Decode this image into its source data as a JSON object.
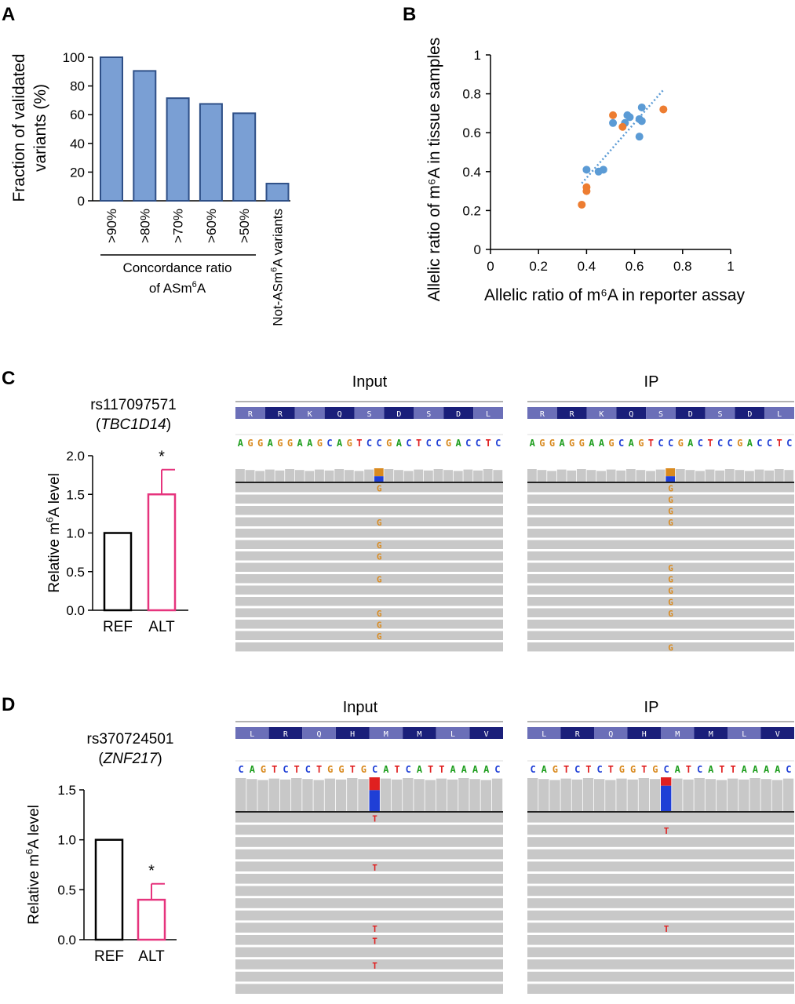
{
  "colors": {
    "barA": "#7a9fd4",
    "barA_edge": "#2e4f87",
    "blue_pt": "#5b9bd5",
    "orange_pt": "#ed7d31",
    "trend": "#5b9bd5",
    "alt": "#e6347d",
    "track_grey": "#c8c8c8",
    "aa_dark": "#1a1f7a",
    "aa_light": "#6b6fb8",
    "nuc_A": "#1f9e1f",
    "nuc_C": "#1f3fd6",
    "nuc_G": "#d98a1f",
    "nuc_T": "#e02020",
    "ref_allele": "#1f3fd6"
  },
  "panels": {
    "A": {
      "letter": "A"
    },
    "B": {
      "letter": "B"
    },
    "C": {
      "letter": "C",
      "snp": "rs117097571",
      "gene": "TBC1D14",
      "input_title": "Input",
      "ip_title": "IP",
      "aa": [
        "R",
        "R",
        "K",
        "Q",
        "S",
        "D",
        "S",
        "D",
        "L"
      ],
      "seq": "AGGAGGAAGCAGTCCGACTCCGACCTC",
      "alt_base": "G",
      "input_alt_rows": [
        0,
        3,
        5,
        6,
        8,
        11,
        12,
        13
      ],
      "ip_alt_rows": [
        0,
        1,
        2,
        3,
        7,
        8,
        9,
        10,
        11,
        14
      ]
    },
    "D": {
      "letter": "D",
      "snp": "rs370724501",
      "gene": "ZNF217",
      "input_title": "Input",
      "ip_title": "IP",
      "aa": [
        "L",
        "R",
        "Q",
        "H",
        "M",
        "M",
        "L",
        "V"
      ],
      "seq": "CAGTCTCTGGTGCATCATTAAAAC",
      "alt_base": "T",
      "input_alt_rows": [
        0,
        4,
        9,
        10,
        12
      ],
      "ip_alt_rows": [
        1,
        9
      ]
    }
  },
  "chart_data": [
    {
      "panel": "A",
      "type": "bar",
      "categories": [
        ">90%",
        ">80%",
        ">70%",
        ">60%",
        ">50%",
        "Not-ASm6A variants"
      ],
      "values": [
        100,
        90.5,
        71.5,
        67.5,
        61,
        12
      ],
      "ylabel_lines": [
        "Fraction of validated",
        "variants (%)"
      ],
      "yticks": [
        0,
        20,
        40,
        60,
        80,
        100
      ],
      "ylim": [
        0,
        100
      ],
      "group_label_lines": [
        "Concordance ratio",
        "of ASm6A"
      ]
    },
    {
      "panel": "B",
      "type": "scatter",
      "xlabel": "Allelic ratio of m⁶A in reporter assay",
      "ylabel": "Allelic ratio of m⁶A in tissue samples",
      "xlim": [
        0,
        1
      ],
      "ylim": [
        0,
        1
      ],
      "xticks": [
        "0",
        "0.2",
        "0.4",
        "0.6",
        "0.8",
        "1"
      ],
      "yticks": [
        "0",
        "0.2",
        "0.4",
        "0.6",
        "0.8",
        "1"
      ],
      "series": [
        {
          "color_key": "blue_pt",
          "x": [
            0.4,
            0.45,
            0.47,
            0.51,
            0.56,
            0.57,
            0.58,
            0.62,
            0.63,
            0.63,
            0.62
          ],
          "y": [
            0.41,
            0.4,
            0.41,
            0.65,
            0.65,
            0.69,
            0.68,
            0.67,
            0.73,
            0.66,
            0.58
          ]
        },
        {
          "color_key": "orange_pt",
          "x": [
            0.38,
            0.4,
            0.4,
            0.51,
            0.55,
            0.72
          ],
          "y": [
            0.23,
            0.3,
            0.32,
            0.69,
            0.63,
            0.72
          ]
        }
      ],
      "trendline": {
        "x": [
          0.38,
          0.72
        ],
        "y": [
          0.34,
          0.82
        ]
      }
    },
    {
      "panel": "C",
      "type": "bar",
      "categories": [
        "REF",
        "ALT"
      ],
      "values": [
        1.0,
        1.5
      ],
      "errors": [
        0,
        0.32
      ],
      "ylabel": "Relative m6A level",
      "yticks": [
        "0.0",
        "0.5",
        "1.0",
        "1.5",
        "2.0"
      ],
      "ylim": [
        0,
        2.0
      ],
      "sig": "*"
    },
    {
      "panel": "D",
      "type": "bar",
      "categories": [
        "REF",
        "ALT"
      ],
      "values": [
        1.0,
        0.4
      ],
      "errors": [
        0,
        0.16
      ],
      "ylabel": "Relative m6A level",
      "yticks": [
        "0.0",
        "0.5",
        "1.0",
        "1.5"
      ],
      "ylim": [
        0,
        1.5
      ],
      "sig": "*"
    }
  ]
}
